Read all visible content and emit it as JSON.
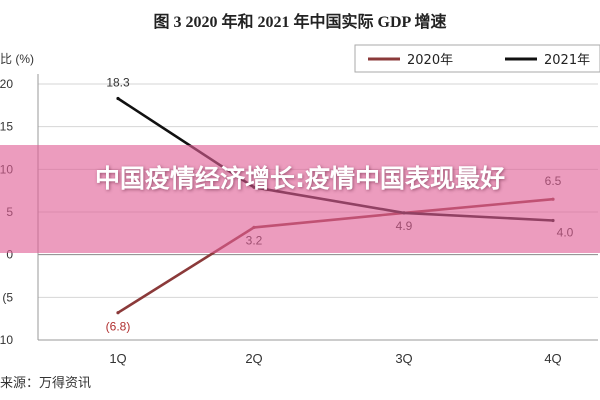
{
  "title": "图 3   2020 年和 2021 年中国实际 GDP 增速",
  "source_note": "来源：万得资讯",
  "banner_text": "中国疫情经济增长:疫情中国表现最好",
  "chart_data": {
    "type": "line",
    "title": "图 3   2020 年和 2021 年中国实际 GDP 增速",
    "ylabel": "比 (%)",
    "xlabel": "",
    "categories": [
      "1Q",
      "2Q",
      "3Q",
      "4Q"
    ],
    "ylim": [
      -10,
      20
    ],
    "yticks": [
      -10,
      -5,
      0,
      5,
      10,
      15,
      20
    ],
    "ytick_labels": [
      "(10",
      "(5",
      "0",
      "5",
      "10",
      "15",
      "20"
    ],
    "grid": true,
    "legend_position": "top-right",
    "series": [
      {
        "name": "2020年",
        "color": "#8b3a3a",
        "values": [
          -6.8,
          3.2,
          4.9,
          6.5
        ],
        "labels": [
          "(6.8)",
          "3.2",
          "4.9",
          "6.5"
        ]
      },
      {
        "name": "2021年",
        "color": "#111111",
        "values": [
          18.3,
          7.9,
          4.9,
          4.0
        ],
        "labels": [
          "18.3",
          "",
          "",
          "4.0"
        ]
      }
    ]
  }
}
